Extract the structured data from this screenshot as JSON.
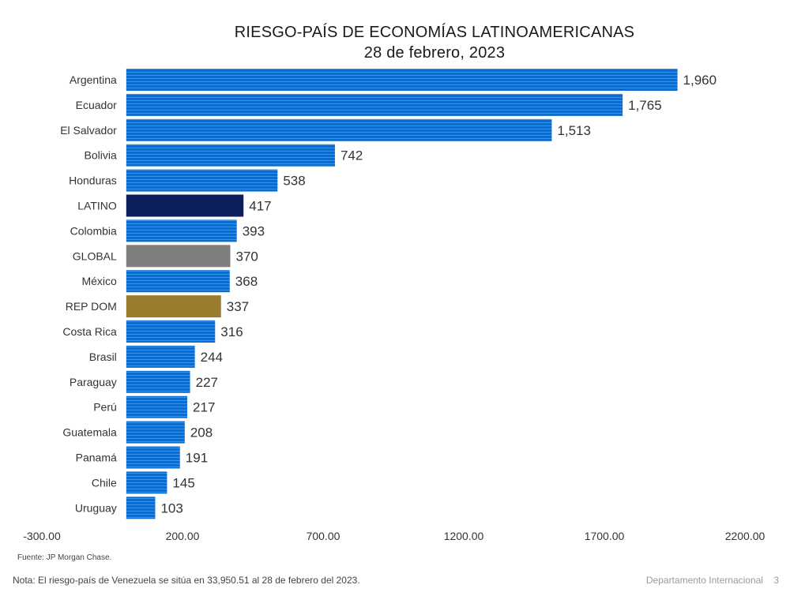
{
  "chart_data": {
    "type": "bar",
    "orientation": "horizontal",
    "title": "RIESGO-PAÍS DE ECONOMÍAS LATINOAMERICANAS",
    "subtitle": "28 de febrero, 2023",
    "categories": [
      "Argentina",
      "Ecuador",
      "El Salvador",
      "Bolivia",
      "Honduras",
      "LATINO",
      "Colombia",
      "GLOBAL",
      "México",
      "REP DOM",
      "Costa Rica",
      "Brasil",
      "Paraguay",
      "Perú",
      "Guatemala",
      "Panamá",
      "Chile",
      "Uruguay"
    ],
    "values": [
      1960,
      1765,
      1513,
      742,
      538,
      417,
      393,
      370,
      368,
      337,
      316,
      244,
      227,
      217,
      208,
      191,
      145,
      103
    ],
    "value_labels": [
      "1,960",
      "1,765",
      "1,513",
      "742",
      "538",
      "417",
      "393",
      "370",
      "368",
      "337",
      "316",
      "244",
      "227",
      "217",
      "208",
      "191",
      "145",
      "103"
    ],
    "bar_colors": [
      "#0a6ccc",
      "#0a6ccc",
      "#0a6ccc",
      "#0a6ccc",
      "#0a6ccc",
      "#0a1f5c",
      "#0a6ccc",
      "#7f7f7f",
      "#0a6ccc",
      "#9a7d2e",
      "#0a6ccc",
      "#0a6ccc",
      "#0a6ccc",
      "#0a6ccc",
      "#0a6ccc",
      "#0a6ccc",
      "#0a6ccc",
      "#0a6ccc"
    ],
    "xlim": [
      -300,
      2200
    ],
    "xticks": [
      -300,
      200,
      700,
      1200,
      1700,
      2200
    ],
    "xtick_labels": [
      "-300.00",
      "200.00",
      "700.00",
      "1200.00",
      "1700.00",
      "2200.00"
    ],
    "xlabel": "",
    "ylabel": "",
    "grid": false,
    "legend": "none"
  },
  "source": "Fuente: JP Morgan Chase.",
  "note": "Nota: El riesgo-país de Venezuela se sitúa en 33,950.51 al 28 de febrero del 2023.",
  "footer": {
    "department": "Departamento Internacional",
    "page": "3"
  }
}
